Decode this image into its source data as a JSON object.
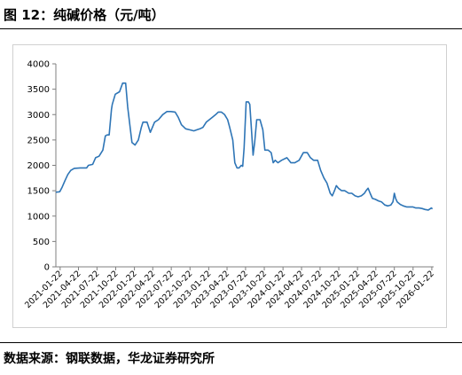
{
  "figure": {
    "title": "图 12：纯碱价格（元/吨）",
    "source": "数据来源：钢联数据，华龙证券研究所"
  },
  "chart_data": {
    "type": "line",
    "title": "",
    "xlabel": "",
    "ylabel": "",
    "ylim": [
      0,
      4000
    ],
    "yticks": [
      0,
      500,
      1000,
      1500,
      2000,
      2500,
      3000,
      3500,
      4000
    ],
    "xlim": [
      "2021-01-01",
      "2026-01-31"
    ],
    "xticks": [
      "2021-01-22",
      "2021-04-22",
      "2021-07-22",
      "2021-10-22",
      "2022-01-22",
      "2022-04-22",
      "2022-07-22",
      "2022-10-22",
      "2023-01-22",
      "2023-04-22",
      "2023-07-22",
      "2023-10-22",
      "2024-01-22",
      "2024-04-22",
      "2024-07-22",
      "2024-10-22",
      "2025-01-22",
      "2025-04-22",
      "2025-07-22",
      "2025-10-22",
      "2026-01-22"
    ],
    "grid": false,
    "legend": "none",
    "colors": {
      "line": "#2e75b6",
      "axis": "#7f7f7f"
    },
    "series": [
      {
        "x": [
          "2021-01-01",
          "2021-01-20",
          "2021-02-01",
          "2021-02-15",
          "2021-03-01",
          "2021-03-15",
          "2021-04-01",
          "2021-05-01",
          "2021-06-01",
          "2021-06-10",
          "2021-07-01",
          "2021-07-15",
          "2021-08-01",
          "2021-08-20",
          "2021-09-01",
          "2021-09-10",
          "2021-09-20",
          "2021-10-01",
          "2021-10-05",
          "2021-10-20",
          "2021-11-10",
          "2021-11-25",
          "2021-12-10",
          "2021-12-20",
          "2022-01-10",
          "2022-01-25",
          "2022-02-10",
          "2022-02-25",
          "2022-03-05",
          "2022-03-25",
          "2022-04-10",
          "2022-05-01",
          "2022-05-20",
          "2022-06-10",
          "2022-07-01",
          "2022-07-20",
          "2022-08-10",
          "2022-08-25",
          "2022-09-10",
          "2022-10-01",
          "2022-10-20",
          "2022-11-10",
          "2022-11-25",
          "2022-12-10",
          "2022-12-25",
          "2023-01-10",
          "2023-01-25",
          "2023-02-10",
          "2023-02-25",
          "2023-03-10",
          "2023-03-25",
          "2023-04-10",
          "2023-04-25",
          "2023-05-05",
          "2023-05-20",
          "2023-05-30",
          "2023-06-10",
          "2023-06-20",
          "2023-07-01",
          "2023-07-08",
          "2023-07-15",
          "2023-07-25",
          "2023-08-05",
          "2023-08-12",
          "2023-08-20",
          "2023-08-28",
          "2023-09-05",
          "2023-09-15",
          "2023-10-01",
          "2023-10-15",
          "2023-10-25",
          "2023-11-10",
          "2023-11-25",
          "2023-12-05",
          "2023-12-15",
          "2023-12-28",
          "2024-01-15",
          "2024-02-10",
          "2024-03-01",
          "2024-03-20",
          "2024-04-10",
          "2024-05-01",
          "2024-05-20",
          "2024-06-05",
          "2024-06-20",
          "2024-07-10",
          "2024-07-25",
          "2024-08-10",
          "2024-08-25",
          "2024-09-10",
          "2024-09-20",
          "2024-10-01",
          "2024-10-10",
          "2024-10-20",
          "2024-11-05",
          "2024-11-20",
          "2024-12-10",
          "2024-12-25",
          "2025-01-10",
          "2025-01-25",
          "2025-02-10",
          "2025-02-25",
          "2025-03-05",
          "2025-03-15",
          "2025-03-25",
          "2025-04-05",
          "2025-04-20",
          "2025-05-05",
          "2025-05-20",
          "2025-06-05",
          "2025-06-20",
          "2025-07-05",
          "2025-07-15",
          "2025-07-22",
          "2025-07-28",
          "2025-08-05",
          "2025-08-20",
          "2025-09-05",
          "2025-09-20",
          "2025-10-05",
          "2025-10-20",
          "2025-11-05",
          "2025-11-20",
          "2025-12-05",
          "2025-12-20",
          "2026-01-05",
          "2026-01-20",
          "2026-01-25"
        ],
        "y": [
          1470,
          1480,
          1570,
          1700,
          1820,
          1900,
          1940,
          1950,
          1950,
          2000,
          2020,
          2150,
          2180,
          2300,
          2580,
          2600,
          2600,
          3100,
          3200,
          3400,
          3450,
          3620,
          3620,
          3150,
          2450,
          2400,
          2500,
          2750,
          2850,
          2850,
          2650,
          2850,
          2900,
          3000,
          3060,
          3060,
          3050,
          2950,
          2800,
          2720,
          2700,
          2680,
          2700,
          2720,
          2750,
          2850,
          2900,
          2950,
          3000,
          3050,
          3050,
          3000,
          2900,
          2750,
          2500,
          2050,
          1950,
          1950,
          2000,
          1980,
          2350,
          3250,
          3250,
          3200,
          2700,
          2200,
          2450,
          2900,
          2900,
          2700,
          2300,
          2300,
          2250,
          2050,
          2100,
          2050,
          2100,
          2150,
          2050,
          2050,
          2100,
          2250,
          2250,
          2150,
          2100,
          2100,
          1900,
          1750,
          1650,
          1450,
          1400,
          1500,
          1600,
          1550,
          1500,
          1500,
          1450,
          1450,
          1400,
          1380,
          1400,
          1450,
          1500,
          1550,
          1450,
          1350,
          1330,
          1300,
          1280,
          1220,
          1200,
          1220,
          1280,
          1450,
          1350,
          1280,
          1230,
          1200,
          1180,
          1180,
          1180,
          1160,
          1160,
          1150,
          1130,
          1120,
          1160,
          1140
        ]
      }
    ]
  }
}
